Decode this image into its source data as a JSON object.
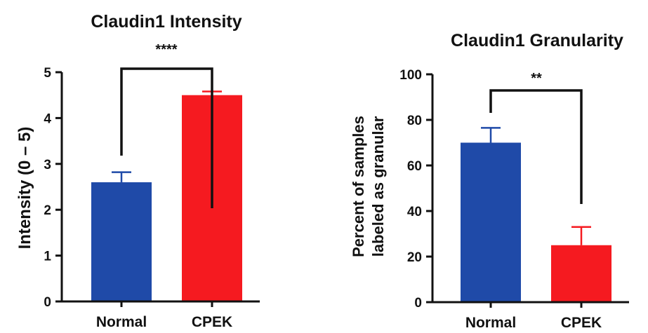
{
  "chart_data": [
    {
      "type": "bar",
      "title": "Claudin1 Intensity",
      "ylabel": "Intensity (0 – 5)",
      "xlabel": "",
      "categories": [
        "Normal",
        "CPEK"
      ],
      "values": [
        2.6,
        4.5
      ],
      "errors": [
        0.22,
        0.08
      ],
      "colors": [
        "#1f4aa8",
        "#f51a20"
      ],
      "ylim": [
        0,
        5
      ],
      "yticks": [
        0,
        1,
        2,
        3,
        4,
        5
      ],
      "significance": "****",
      "grid": false
    },
    {
      "type": "bar",
      "title": "Claudin1 Granularity",
      "ylabel": "Percent of samples labeled as granular",
      "ylabel_lines": [
        "Percent of samples",
        "labeled as granular"
      ],
      "xlabel": "",
      "categories": [
        "Normal",
        "CPEK"
      ],
      "values": [
        70,
        25
      ],
      "errors": [
        6.5,
        8
      ],
      "colors": [
        "#1f4aa8",
        "#f51a20"
      ],
      "ylim": [
        0,
        100
      ],
      "yticks": [
        0,
        20,
        40,
        60,
        80,
        100
      ],
      "significance": "**",
      "grid": false
    }
  ]
}
